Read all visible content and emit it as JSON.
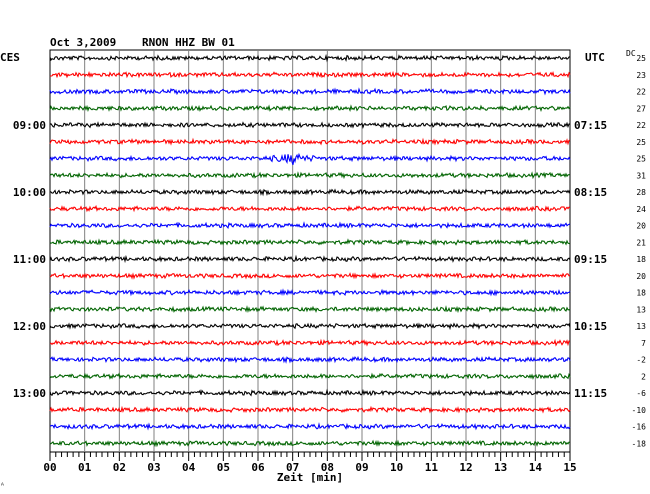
{
  "header": {
    "date": "Oct 3,2009",
    "station": "RNON HHZ BW 01",
    "left_zone": "CES",
    "right_zone": "UTC",
    "dc_label": "DC"
  },
  "chart_data": {
    "type": "line",
    "title": "Oct 3,2009   RNON HHZ BW 01",
    "xlabel": "Zeit [min]",
    "xlim": [
      0,
      15
    ],
    "x_ticks": [
      "00",
      "01",
      "02",
      "03",
      "04",
      "05",
      "06",
      "07",
      "08",
      "09",
      "10",
      "11",
      "12",
      "13",
      "14",
      "15"
    ],
    "trace_count": 24,
    "trace_minutes": 15,
    "trace_colors": [
      "#000000",
      "#ff0000",
      "#0000ff",
      "#006400"
    ],
    "left_hour_labels": [
      {
        "trace": 4,
        "label": "09:00"
      },
      {
        "trace": 8,
        "label": "10:00"
      },
      {
        "trace": 12,
        "label": "11:00"
      },
      {
        "trace": 16,
        "label": "12:00"
      },
      {
        "trace": 20,
        "label": "13:00"
      }
    ],
    "right_time_labels": [
      {
        "trace": 4,
        "label": "07:15"
      },
      {
        "trace": 8,
        "label": "08:15"
      },
      {
        "trace": 12,
        "label": "09:15"
      },
      {
        "trace": 16,
        "label": "10:15"
      },
      {
        "trace": 20,
        "label": "11:15"
      }
    ],
    "dc_offsets": [
      "25",
      "23",
      "22",
      "27",
      "22",
      "25",
      "25",
      "31",
      "28",
      "24",
      "20",
      "21",
      "18",
      "20",
      "18",
      "13",
      "13",
      "7",
      "-2",
      "2",
      "-6",
      "-10",
      "-16",
      "-18"
    ],
    "events": [
      {
        "trace": 6,
        "minute": 7.0,
        "note": "small event"
      }
    ],
    "grid": true
  }
}
